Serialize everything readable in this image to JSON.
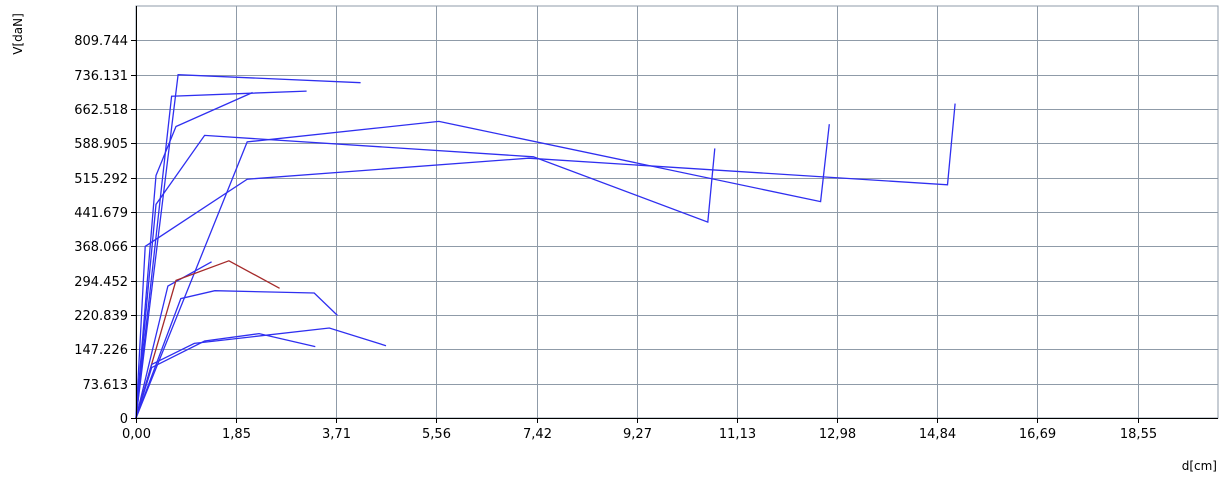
{
  "chart_data": {
    "type": "line",
    "xlabel": "d[cm]",
    "ylabel": "V[daN]",
    "xlim": [
      0,
      20.04
    ],
    "ylim": [
      0,
      883.357
    ],
    "x_ticks": [
      0,
      1.85,
      3.71,
      5.56,
      7.42,
      9.27,
      11.13,
      12.98,
      14.84,
      16.69,
      18.55
    ],
    "x_tick_labels": [
      "0,00",
      "1,85",
      "3,71",
      "5,56",
      "7,42",
      "9,27",
      "11,13",
      "12,98",
      "14,84",
      "16,69",
      "18,55"
    ],
    "y_ticks": [
      0,
      73.613,
      147.226,
      220.839,
      294.452,
      368.066,
      441.679,
      515.292,
      588.905,
      662.518,
      736.131,
      809.744
    ],
    "y_tick_labels": [
      "0",
      "73.613",
      "147.226",
      "220.839",
      "294.452",
      "368.066",
      "441.679",
      "515.292",
      "588.905",
      "662.518",
      "736.131",
      "809.744"
    ],
    "grid": true,
    "colors": {
      "blue": "#2f2ff0",
      "red": "#a52a2a",
      "grid": "#8f9ba8"
    },
    "series": [
      {
        "color": "#2f2ff0",
        "x": [
          0,
          0.78,
          4.16
        ],
        "y": [
          0,
          736,
          719
        ]
      },
      {
        "color": "#2f2ff0",
        "x": [
          0,
          0.66,
          3.16
        ],
        "y": [
          0,
          690,
          701
        ]
      },
      {
        "color": "#2f2ff0",
        "x": [
          0,
          0.37,
          0.74,
          2.16
        ],
        "y": [
          0,
          520,
          625,
          698
        ]
      },
      {
        "color": "#2f2ff0",
        "x": [
          0,
          0.37,
          1.27,
          7.36,
          10.59,
          10.72
        ],
        "y": [
          0,
          458,
          606,
          560,
          420,
          578
        ]
      },
      {
        "color": "#2f2ff0",
        "x": [
          0,
          2.06,
          5.61,
          12.68,
          12.84
        ],
        "y": [
          0,
          592,
          636,
          464,
          630
        ]
      },
      {
        "color": "#2f2ff0",
        "x": [
          0,
          0.17,
          2.06,
          7.27,
          15.03,
          15.17
        ],
        "y": [
          0,
          368,
          512,
          557,
          500,
          674
        ]
      },
      {
        "color": "#2f2ff0",
        "x": [
          0,
          0.59,
          1.4
        ],
        "y": [
          0,
          283,
          335
        ]
      },
      {
        "color": "#2f2ff0",
        "x": [
          0,
          0.83,
          1.46,
          3.3,
          3.73
        ],
        "y": [
          0,
          256,
          273,
          268,
          220
        ]
      },
      {
        "color": "#a52a2a",
        "x": [
          0,
          0.74,
          1.72,
          2.66
        ],
        "y": [
          0,
          295,
          337,
          278
        ]
      },
      {
        "color": "#2f2ff0",
        "x": [
          0,
          0.29,
          1.27,
          2.28,
          3.32
        ],
        "y": [
          0,
          108,
          165,
          181,
          153
        ]
      },
      {
        "color": "#2f2ff0",
        "x": [
          0,
          0.29,
          1.08,
          3.58,
          4.63
        ],
        "y": [
          0,
          115,
          160,
          193,
          155
        ]
      }
    ]
  }
}
